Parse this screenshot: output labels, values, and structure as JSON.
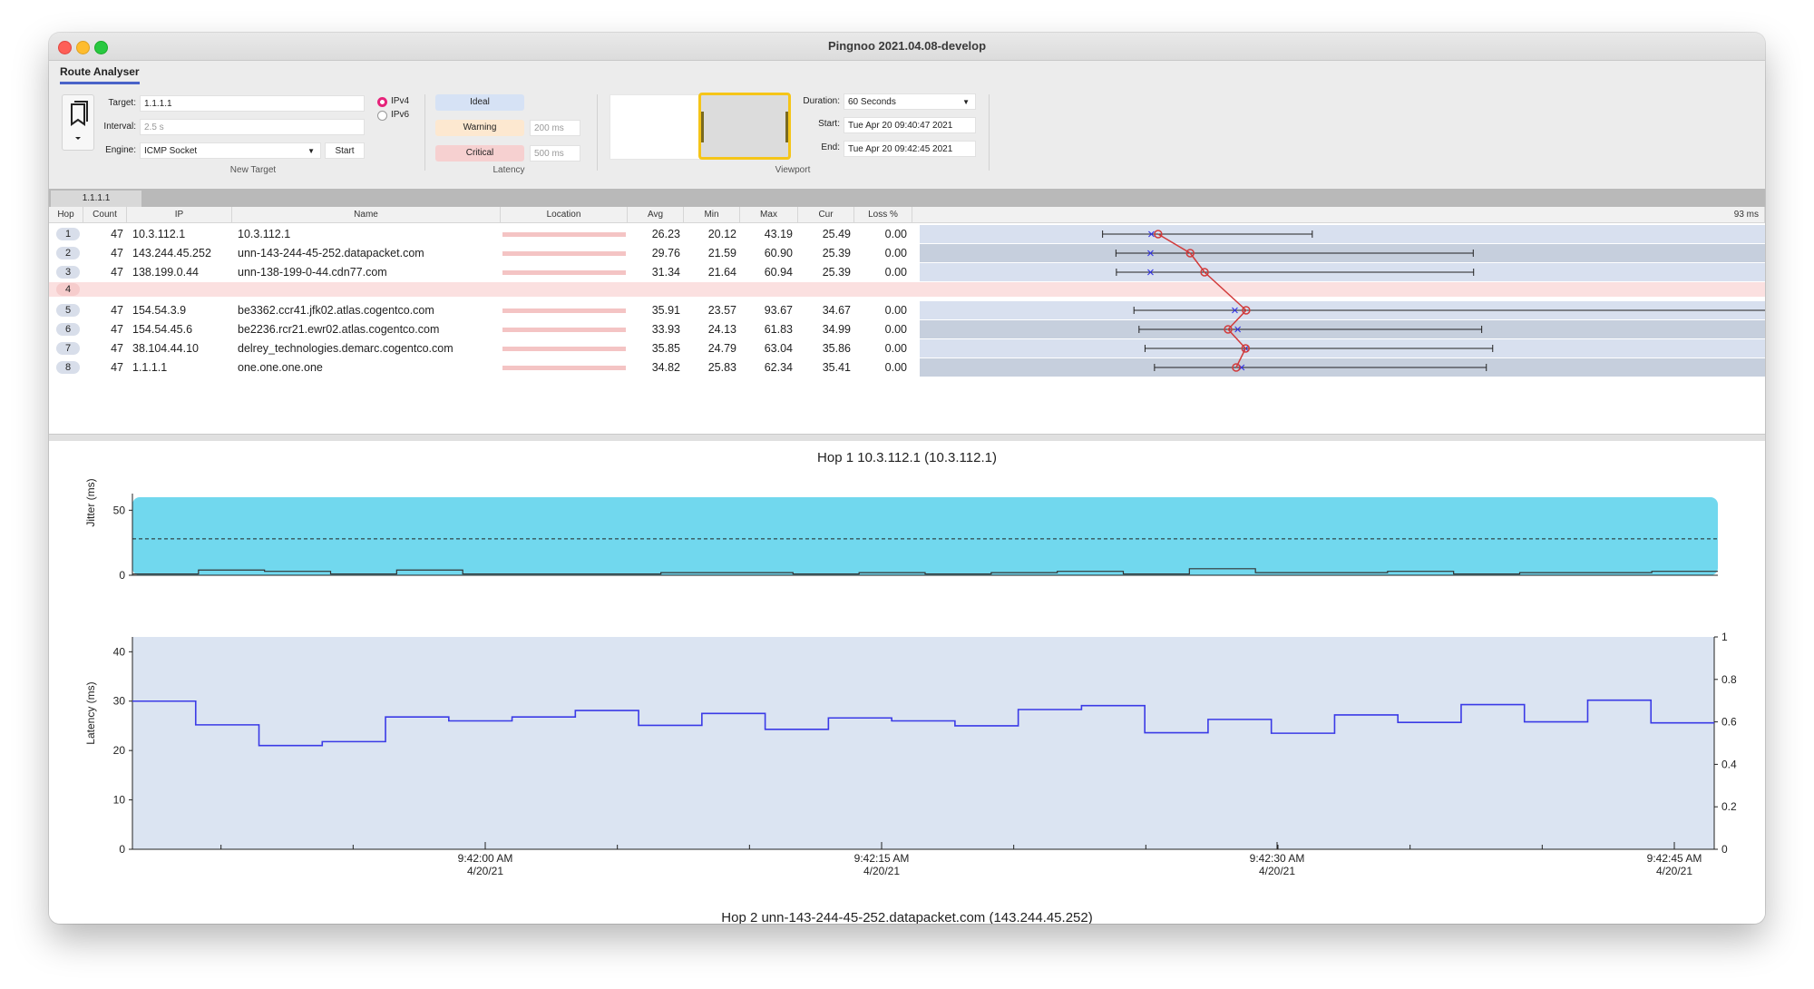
{
  "window": {
    "title": "Pingnoo 2021.04.08-develop"
  },
  "ribbon": {
    "tab_label": "Route Analyser",
    "new_target": {
      "target_label": "Target:",
      "target_value": "1.1.1.1",
      "interval_label": "Interval:",
      "interval_placeholder": "2.5 s",
      "engine_label": "Engine:",
      "engine_value": "ICMP Socket",
      "start_label": "Start",
      "ipv4_label": "IPv4",
      "ipv6_label": "IPv6",
      "group_label": "New Target"
    },
    "latency": {
      "ideal_label": "Ideal",
      "warning_label": "Warning",
      "critical_label": "Critical",
      "warning_value": "200 ms",
      "critical_value": "500 ms",
      "group_label": "Latency",
      "colors": {
        "ideal": "#d6e2f5",
        "warning": "#fde8d0",
        "critical": "#f6d0d0"
      }
    },
    "viewport": {
      "duration_label": "Duration:",
      "duration_value": "60 Seconds",
      "start_label": "Start:",
      "start_value": "Tue Apr 20 09:40:47 2021",
      "end_label": "End:",
      "end_value": "Tue Apr 20 09:42:45 2021",
      "group_label": "Viewport",
      "accent": "#f5c518"
    }
  },
  "target_tab": "1.1.1.1",
  "table": {
    "headers": [
      "Hop",
      "Count",
      "IP",
      "Name",
      "Location",
      "Avg",
      "Min",
      "Max",
      "Cur",
      "Loss %"
    ],
    "scale_label": "93 ms",
    "rows": [
      {
        "hop": "1",
        "count": "47",
        "ip": "10.3.112.1",
        "name": "10.3.112.1",
        "avg": "26.23",
        "min": "20.12",
        "max": "43.19",
        "cur": "25.49",
        "loss": "0.00"
      },
      {
        "hop": "2",
        "count": "47",
        "ip": "143.244.45.252",
        "name": "unn-143-244-45-252.datapacket.com",
        "avg": "29.76",
        "min": "21.59",
        "max": "60.90",
        "cur": "25.39",
        "loss": "0.00"
      },
      {
        "hop": "3",
        "count": "47",
        "ip": "138.199.0.44",
        "name": "unn-138-199-0-44.cdn77.com",
        "avg": "31.34",
        "min": "21.64",
        "max": "60.94",
        "cur": "25.39",
        "loss": "0.00"
      },
      {
        "hop": "4",
        "count": "",
        "ip": "",
        "name": "",
        "avg": "",
        "min": "",
        "max": "",
        "cur": "",
        "loss": ""
      },
      {
        "hop": "5",
        "count": "47",
        "ip": "154.54.3.9",
        "name": "be3362.ccr41.jfk02.atlas.cogentco.com",
        "avg": "35.91",
        "min": "23.57",
        "max": "93.67",
        "cur": "34.67",
        "loss": "0.00"
      },
      {
        "hop": "6",
        "count": "47",
        "ip": "154.54.45.6",
        "name": "be2236.rcr21.ewr02.atlas.cogentco.com",
        "avg": "33.93",
        "min": "24.13",
        "max": "61.83",
        "cur": "34.99",
        "loss": "0.00"
      },
      {
        "hop": "7",
        "count": "47",
        "ip": "38.104.44.10",
        "name": "delrey_technologies.demarc.cogentco.com",
        "avg": "35.85",
        "min": "24.79",
        "max": "63.04",
        "cur": "35.86",
        "loss": "0.00"
      },
      {
        "hop": "8",
        "count": "47",
        "ip": "1.1.1.1",
        "name": "one.one.one.one",
        "avg": "34.82",
        "min": "25.83",
        "max": "62.34",
        "cur": "35.41",
        "loss": "0.00"
      }
    ]
  },
  "detail": {
    "title": "Hop 1 10.3.112.1 (10.3.112.1)",
    "jitter_ylabel": "Jitter (ms)",
    "latency_ylabel": "Latency (ms)",
    "next_title_fragment": "Hop 2 unn-143-244-45-252.datapacket.com (143.244.45.252)"
  },
  "chart_data": [
    {
      "type": "area",
      "ylabel": "Jitter (ms)",
      "ylim": [
        0,
        60
      ],
      "yticks": [
        0,
        50
      ],
      "threshold": 28,
      "values": [
        1,
        4,
        3,
        1,
        4,
        1,
        1,
        1,
        2,
        2,
        1,
        2,
        1,
        2,
        3,
        1,
        5,
        2,
        2,
        3,
        1,
        2,
        2,
        3
      ],
      "color": "#71d8ee"
    },
    {
      "type": "line",
      "ylabel": "Latency (ms)",
      "ylim": [
        0,
        43
      ],
      "yticks": [
        0,
        10,
        20,
        30,
        40
      ],
      "y2ticks": [
        "0",
        "0.2",
        "0.4",
        "0.6",
        "0.8",
        "1"
      ],
      "xticks": [
        {
          "time": "9:42:00 AM",
          "date": "4/20/21"
        },
        {
          "time": "9:42:15 AM",
          "date": "4/20/21"
        },
        {
          "time": "9:42:30 AM",
          "date": "4/20/21"
        },
        {
          "time": "9:42:45 AM",
          "date": "4/20/21"
        }
      ],
      "values": [
        30,
        25.2,
        21,
        21.8,
        26.8,
        26,
        26.8,
        28.1,
        25.1,
        27.5,
        24.3,
        26.6,
        26,
        25,
        28.3,
        29.1,
        23.6,
        26.3,
        23.5,
        27.2,
        25.7,
        29.3,
        25.8,
        30.2,
        25.6
      ],
      "series_color": "#3a3ae6",
      "background": "#dbe4f2"
    }
  ]
}
